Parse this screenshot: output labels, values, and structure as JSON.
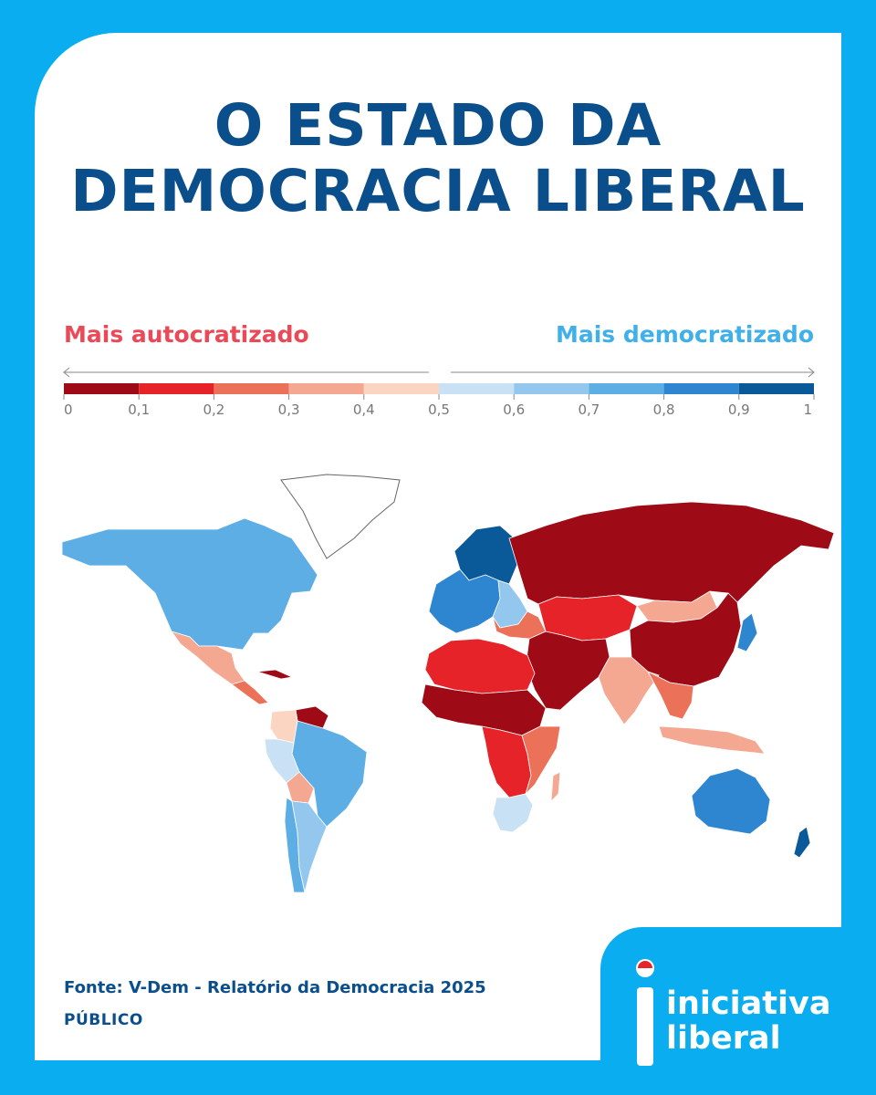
{
  "title": {
    "line1": "O ESTADO DA",
    "line2": "DEMOCRACIA LIBERAL"
  },
  "legend": {
    "left_label": "Mais autocratizado",
    "right_label": "Mais democratizado",
    "ticks": [
      "0",
      "0,1",
      "0,2",
      "0,3",
      "0,4",
      "0,5",
      "0,6",
      "0,7",
      "0,8",
      "0,9",
      "1"
    ],
    "colors": [
      "#9e0a16",
      "#e52329",
      "#ec7159",
      "#f4a791",
      "#fbd4c2",
      "#c8e1f4",
      "#94c7ee",
      "#5eaee6",
      "#2f86d0",
      "#0a5a9a"
    ]
  },
  "map": {
    "no_data_color": "#ffffff",
    "regions": [
      {
        "name": "north-america",
        "index": 0.75
      },
      {
        "name": "greenland",
        "index": null
      },
      {
        "name": "mexico",
        "index": 0.3
      },
      {
        "name": "central-america",
        "index": 0.25
      },
      {
        "name": "cuba",
        "index": 0.05
      },
      {
        "name": "venezuela",
        "index": 0.05
      },
      {
        "name": "colombia",
        "index": 0.45
      },
      {
        "name": "brazil",
        "index": 0.7
      },
      {
        "name": "peru",
        "index": 0.55
      },
      {
        "name": "bolivia",
        "index": 0.35
      },
      {
        "name": "chile",
        "index": 0.75
      },
      {
        "name": "argentina",
        "index": 0.6
      },
      {
        "name": "nordics",
        "index": 0.95
      },
      {
        "name": "western-europe",
        "index": 0.8
      },
      {
        "name": "eastern-europe",
        "index": 0.65
      },
      {
        "name": "balkans",
        "index": 0.25
      },
      {
        "name": "russia",
        "index": 0.05
      },
      {
        "name": "central-asia",
        "index": 0.1
      },
      {
        "name": "mongolia",
        "index": 0.35
      },
      {
        "name": "china",
        "index": 0.05
      },
      {
        "name": "middle-east",
        "index": 0.05
      },
      {
        "name": "north-africa",
        "index": 0.15
      },
      {
        "name": "sahel",
        "index": 0.05
      },
      {
        "name": "central-africa",
        "index": 0.15
      },
      {
        "name": "east-africa",
        "index": 0.25
      },
      {
        "name": "southern-africa",
        "index": 0.55
      },
      {
        "name": "madagascar",
        "index": 0.35
      },
      {
        "name": "india",
        "index": 0.3
      },
      {
        "name": "southeast-asia",
        "index": 0.25
      },
      {
        "name": "indonesia",
        "index": 0.35
      },
      {
        "name": "japan",
        "index": 0.8
      },
      {
        "name": "australia",
        "index": 0.8
      },
      {
        "name": "new-zealand",
        "index": 0.9
      }
    ]
  },
  "footer": {
    "source": "Fonte: V-Dem - Relatório da Democracia 2025",
    "publication": "PÚBLICO"
  },
  "logo": {
    "line1": "iniciativa",
    "line2": "liberal"
  }
}
